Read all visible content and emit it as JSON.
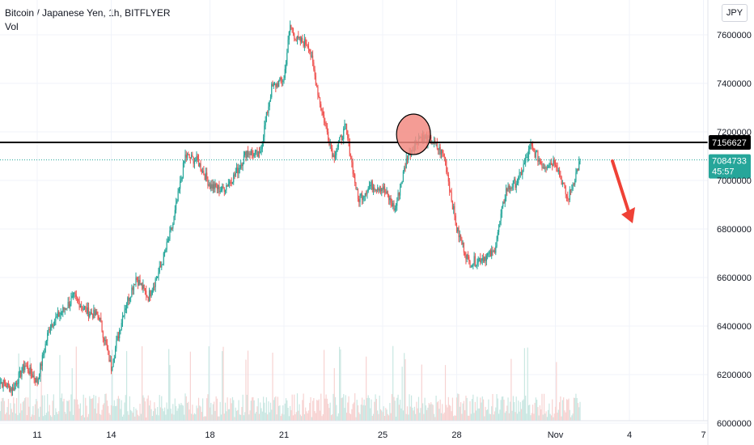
{
  "header": {
    "symbol_title": "Bitcoin / Japanese Yen, 1h, BITFLYER",
    "volume_label": "Vol",
    "currency_button": "JPY"
  },
  "colors": {
    "up": "#26a69a",
    "down": "#ef5350",
    "up_volume": "#c9e7e2",
    "down_volume": "#f7d2d1",
    "resistance_line": "#000000",
    "current_price": "#26a69a",
    "annotation_circle_fill": "#f28b82",
    "arrow": "#ef4136"
  },
  "chart_data": {
    "type": "candlestick",
    "yticks": [
      "7600000",
      "7400000",
      "7200000",
      "7000000",
      "6800000",
      "6600000",
      "6400000",
      "6200000",
      "6000000"
    ],
    "xticks": [
      "11",
      "14",
      "18",
      "21",
      "25",
      "28",
      "Nov",
      "4",
      "7"
    ],
    "ylim": [
      6000000,
      7690000
    ],
    "grid": true,
    "resistance_level": 7156627,
    "resistance_label": "7156627",
    "current_price": 7084733,
    "current_price_label": "7084733",
    "countdown": "45:57",
    "price_path": [
      [
        "Oct 9 08:00",
        6180000
      ],
      [
        "Oct 10 00:00",
        6140000
      ],
      [
        "Oct 10 12:00",
        6240000
      ],
      [
        "Oct 11 00:00",
        6170000
      ],
      [
        "Oct 11 12:00",
        6400000
      ],
      [
        "Oct 12 00:00",
        6460000
      ],
      [
        "Oct 12 12:00",
        6520000
      ],
      [
        "Oct 13 00:00",
        6460000
      ],
      [
        "Oct 13 12:00",
        6440000
      ],
      [
        "Oct 14 00:00",
        6230000
      ],
      [
        "Oct 14 12:00",
        6460000
      ],
      [
        "Oct 15 00:00",
        6600000
      ],
      [
        "Oct 15 12:00",
        6520000
      ],
      [
        "Oct 16 00:00",
        6640000
      ],
      [
        "Oct 16 12:00",
        6820000
      ],
      [
        "Oct 17 00:00",
        7100000
      ],
      [
        "Oct 17 12:00",
        7080000
      ],
      [
        "Oct 18 00:00",
        6980000
      ],
      [
        "Oct 18 12:00",
        6960000
      ],
      [
        "Oct 19 00:00",
        7020000
      ],
      [
        "Oct 19 12:00",
        7120000
      ],
      [
        "Oct 20 00:00",
        7100000
      ],
      [
        "Oct 20 12:00",
        7380000
      ],
      [
        "Oct 21 00:00",
        7420000
      ],
      [
        "Oct 21 06:00",
        7640000
      ],
      [
        "Oct 21 12:00",
        7580000
      ],
      [
        "Oct 22 00:00",
        7560000
      ],
      [
        "Oct 22 12:00",
        7300000
      ],
      [
        "Oct 23 00:00",
        7100000
      ],
      [
        "Oct 23 12:00",
        7220000
      ],
      [
        "Oct 24 00:00",
        6920000
      ],
      [
        "Oct 24 12:00",
        6980000
      ],
      [
        "Oct 25 00:00",
        6970000
      ],
      [
        "Oct 25 12:00",
        6880000
      ],
      [
        "Oct 26 00:00",
        7100000
      ],
      [
        "Oct 26 12:00",
        7180000
      ],
      [
        "Oct 27 00:00",
        7160000
      ],
      [
        "Oct 27 12:00",
        7100000
      ],
      [
        "Oct 28 00:00",
        6800000
      ],
      [
        "Oct 28 12:00",
        6660000
      ],
      [
        "Oct 29 00:00",
        6680000
      ],
      [
        "Oct 29 12:00",
        6700000
      ],
      [
        "Oct 30 00:00",
        6960000
      ],
      [
        "Oct 30 12:00",
        7000000
      ],
      [
        "Oct 31 00:00",
        7140000
      ],
      [
        "Oct 31 12:00",
        7060000
      ],
      [
        "Nov 1 00:00",
        7080000
      ],
      [
        "Nov 1 12:00",
        6920000
      ],
      [
        "Nov 1 18:00",
        7000000
      ],
      [
        "Nov 2 00:00",
        7080000
      ]
    ],
    "annotations": {
      "circle": "highlights rejection at resistance near Oct 26",
      "arrow": "downward arrow to the right of the last candle"
    }
  }
}
